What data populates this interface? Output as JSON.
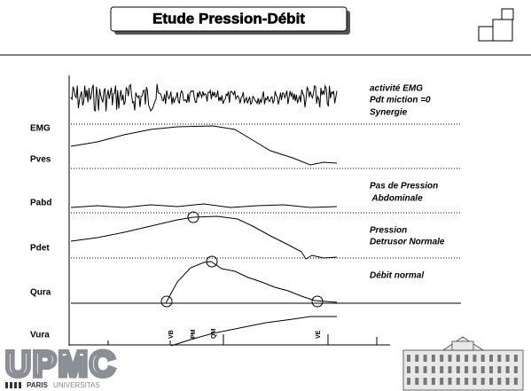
{
  "header": {
    "title": "Etude Pression-Débit"
  },
  "channels": [
    "EMG",
    "Pves",
    "Pabd",
    "Pdet",
    "Qura",
    "Vura"
  ],
  "annotations": {
    "emg": [
      "activité EMG",
      "Pdt miction =0",
      "Synergie"
    ],
    "pabd": [
      "Pas de Pression",
      " Abdominale"
    ],
    "pdet": [
      "Pression",
      "Detrusor Normale"
    ],
    "qura": [
      "Débit normal"
    ]
  },
  "events": [
    "VB",
    "PM",
    "QM",
    "VE"
  ],
  "logo": {
    "name": "UPMC",
    "paris": "PARIS",
    "universitas": "UNIVERSITAS"
  }
}
